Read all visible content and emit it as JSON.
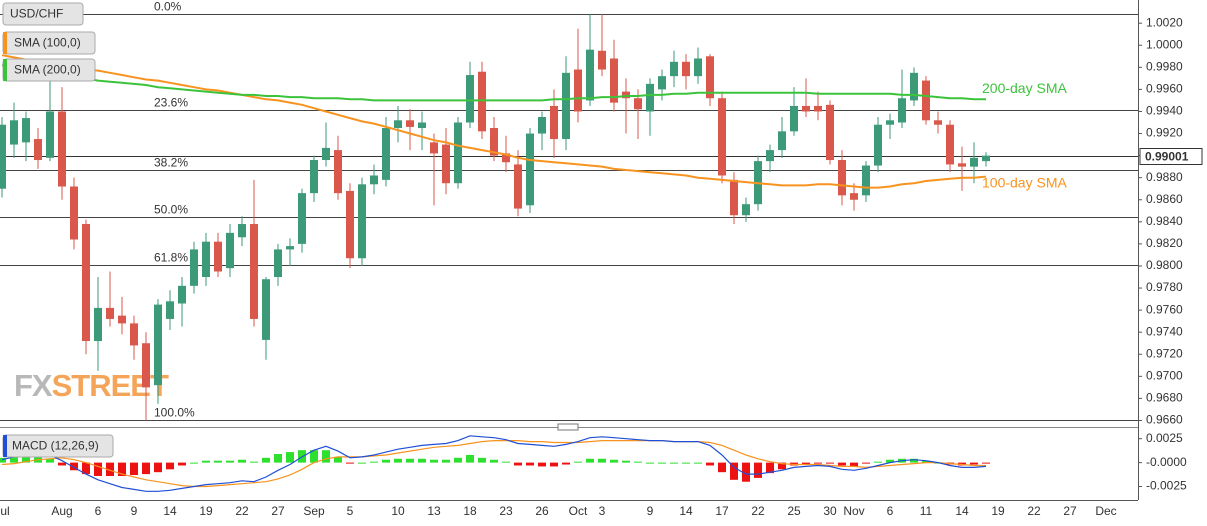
{
  "chart_data": [
    {
      "type": "candlestick",
      "title": "USD/CHF",
      "categories": [
        "Jul",
        null,
        null,
        null,
        null,
        "Aug",
        null,
        null,
        "6",
        null,
        null,
        "9",
        null,
        null,
        "14",
        null,
        null,
        "19",
        null,
        null,
        "22",
        null,
        null,
        "27",
        null,
        null,
        "Sep",
        null,
        null,
        "5",
        null,
        null,
        null,
        "10",
        null,
        null,
        "13",
        null,
        null,
        "18",
        null,
        null,
        "23",
        null,
        null,
        "26",
        null,
        null,
        "Oct",
        null,
        "3",
        null,
        null,
        null,
        "9",
        null,
        null,
        "14",
        null,
        null,
        "17",
        null,
        null,
        "22",
        null,
        null,
        "25",
        null,
        null,
        "30",
        null,
        "Nov",
        null,
        null,
        "6",
        null,
        null,
        "11",
        null,
        null,
        "14",
        null,
        null,
        "19",
        null,
        null,
        "22",
        null,
        null,
        "27",
        null,
        null,
        "Dec",
        null,
        null
      ],
      "open": [
        0.987,
        0.991,
        0.9912,
        0.9915,
        0.9898,
        0.994,
        0.9872,
        0.9838,
        0.9732,
        0.9762,
        0.9755,
        0.9748,
        0.973,
        0.9692,
        0.9752,
        0.9766,
        0.9782,
        0.979,
        0.9822,
        0.9798,
        0.9826,
        0.9838,
        0.9733,
        0.979,
        0.9815,
        0.982,
        0.9866,
        0.9896,
        0.9905,
        0.9868,
        0.9807,
        0.9874,
        0.9878,
        0.9925,
        0.9932,
        0.9925,
        0.9912,
        0.991,
        0.9875,
        0.993,
        0.9976,
        0.9925,
        0.9902,
        0.9892,
        0.9855,
        0.992,
        0.9945,
        0.9915,
        0.9978,
        0.995,
        0.9995,
        0.9988,
        0.9958,
        0.9952,
        0.994,
        0.996,
        0.9972,
        0.9985,
        0.9972,
        0.999,
        0.9952,
        0.9878,
        0.9846,
        0.9856,
        0.9895,
        0.9905,
        0.9922,
        0.9945,
        0.9945,
        0.9946,
        0.9896,
        0.9866,
        0.9864,
        0.9891,
        0.9928,
        0.993,
        0.995,
        0.9968,
        0.9932,
        0.9928,
        0.9893,
        0.989,
        0.9895,
        null,
        null,
        null,
        null,
        null,
        null,
        null,
        null,
        null,
        null,
        null,
        null
      ],
      "high": [
        0.9935,
        0.9948,
        0.994,
        0.9925,
        0.9968,
        0.9962,
        0.988,
        0.9842,
        0.979,
        0.9795,
        0.9772,
        0.9755,
        0.974,
        0.977,
        0.9778,
        0.979,
        0.9822,
        0.983,
        0.983,
        0.9838,
        0.9845,
        0.9878,
        0.979,
        0.982,
        0.9825,
        0.987,
        0.99,
        0.993,
        0.9918,
        0.9875,
        0.988,
        0.9892,
        0.9935,
        0.9945,
        0.9942,
        0.994,
        0.992,
        0.9925,
        0.9935,
        0.9985,
        0.9985,
        0.9935,
        0.9918,
        0.9905,
        0.9925,
        0.994,
        0.996,
        0.999,
        1.0015,
        1.0028,
        1.0028,
        1.0005,
        0.997,
        0.996,
        0.997,
        0.9978,
        0.9995,
        0.9992,
        0.9998,
        0.9992,
        0.9958,
        0.9885,
        0.9862,
        0.99,
        0.991,
        0.9935,
        0.9962,
        0.997,
        0.9958,
        0.995,
        0.9905,
        0.9875,
        0.9895,
        0.9935,
        0.9938,
        0.9978,
        0.998,
        0.9972,
        0.994,
        0.9932,
        0.9908,
        0.9912,
        0.9903,
        null,
        null,
        null,
        null,
        null,
        null,
        null,
        null,
        null,
        null,
        null,
        null
      ],
      "low": [
        0.9862,
        0.9898,
        0.9895,
        0.9888,
        0.9895,
        0.986,
        0.9815,
        0.972,
        0.9705,
        0.9745,
        0.9738,
        0.9715,
        0.966,
        0.9675,
        0.9742,
        0.9745,
        0.9775,
        0.9782,
        0.979,
        0.979,
        0.9818,
        0.9745,
        0.9715,
        0.9782,
        0.98,
        0.9812,
        0.9858,
        0.989,
        0.986,
        0.9798,
        0.98,
        0.9865,
        0.9872,
        0.9912,
        0.9905,
        0.9905,
        0.9855,
        0.9865,
        0.987,
        0.9925,
        0.9915,
        0.9895,
        0.9885,
        0.9845,
        0.9848,
        0.9905,
        0.9898,
        0.9905,
        0.993,
        0.9945,
        0.9972,
        0.994,
        0.992,
        0.9915,
        0.9918,
        0.995,
        0.9962,
        0.996,
        0.9965,
        0.9945,
        0.9875,
        0.9838,
        0.984,
        0.985,
        0.9885,
        0.9898,
        0.9918,
        0.9935,
        0.9932,
        0.9892,
        0.9855,
        0.985,
        0.9858,
        0.9885,
        0.9915,
        0.9925,
        0.9945,
        0.9928,
        0.992,
        0.9885,
        0.9868,
        0.9875,
        0.989,
        null,
        null,
        null,
        null,
        null,
        null,
        null,
        null,
        null,
        null,
        null,
        null
      ],
      "close": [
        0.9928,
        0.9932,
        0.9934,
        0.9896,
        0.994,
        0.9872,
        0.9824,
        0.9732,
        0.9762,
        0.9752,
        0.9748,
        0.9728,
        0.969,
        0.9765,
        0.9768,
        0.9782,
        0.9815,
        0.9822,
        0.9795,
        0.983,
        0.9838,
        0.9752,
        0.9788,
        0.9815,
        0.9818,
        0.9866,
        0.9896,
        0.9907,
        0.9866,
        0.9807,
        0.9874,
        0.9882,
        0.9925,
        0.9932,
        0.9926,
        0.993,
        0.9902,
        0.9875,
        0.993,
        0.9973,
        0.9922,
        0.99,
        0.9894,
        0.9852,
        0.992,
        0.9935,
        0.9915,
        0.9975,
        0.994,
        0.9996,
        0.9978,
        0.9948,
        0.9952,
        0.9942,
        0.9965,
        0.9972,
        0.9985,
        0.9972,
        0.9988,
        0.9952,
        0.9882,
        0.9846,
        0.9856,
        0.9895,
        0.9905,
        0.9922,
        0.9945,
        0.994,
        0.994,
        0.9896,
        0.9864,
        0.986,
        0.9891,
        0.9928,
        0.9932,
        0.9952,
        0.9975,
        0.9932,
        0.9928,
        0.9892,
        0.989,
        0.9898,
        0.99,
        null,
        null,
        null,
        null,
        null,
        null,
        null,
        null,
        null,
        null,
        null,
        null
      ],
      "colors": {
        "up": "#3c9a78",
        "down": "#d9574b"
      },
      "series": [
        {
          "name": "SMA (100,0)",
          "label": "100-day SMA",
          "color": "#f7931e",
          "values": [
            0.9991,
            0.9989,
            0.9987,
            0.9986,
            0.9984,
            0.9982,
            0.998,
            0.9978,
            0.9977,
            0.9975,
            0.9973,
            0.9971,
            0.9969,
            0.9968,
            0.9966,
            0.9964,
            0.9962,
            0.996,
            0.9959,
            0.9957,
            0.9955,
            0.9953,
            0.9951,
            0.995,
            0.9948,
            0.9946,
            0.9943,
            0.994,
            0.9937,
            0.9934,
            0.9931,
            0.9929,
            0.9926,
            0.9923,
            0.992,
            0.9917,
            0.9914,
            0.9912,
            0.9909,
            0.9907,
            0.9905,
            0.9903,
            0.9901,
            0.9898,
            0.9896,
            0.9895,
            0.9894,
            0.9893,
            0.9892,
            0.9891,
            0.989,
            0.9888,
            0.9887,
            0.9886,
            0.9885,
            0.9884,
            0.9883,
            0.9882,
            0.988,
            0.9879,
            0.9878,
            0.9877,
            0.9876,
            0.9875,
            0.9874,
            0.9873,
            0.9873,
            0.9873,
            0.9874,
            0.9874,
            0.9873,
            0.9872,
            0.9871,
            0.9871,
            0.9872,
            0.9874,
            0.9875,
            0.9877,
            0.9878,
            0.9879,
            0.988,
            0.988,
            0.9881,
            null,
            null,
            null,
            null,
            null,
            null,
            null,
            null,
            null,
            null,
            null,
            null
          ]
        },
        {
          "name": "SMA (200,0)",
          "label": "200-day SMA",
          "color": "#3cc33c",
          "values": [
            0.9982,
            0.998,
            0.9979,
            0.9977,
            0.9975,
            0.9973,
            0.9972,
            0.997,
            0.9968,
            0.9967,
            0.9966,
            0.9965,
            0.9964,
            0.9962,
            0.9961,
            0.996,
            0.9959,
            0.9958,
            0.9957,
            0.9956,
            0.9955,
            0.9955,
            0.9954,
            0.9954,
            0.9953,
            0.9953,
            0.9952,
            0.9952,
            0.9952,
            0.9951,
            0.9951,
            0.995,
            0.995,
            0.995,
            0.995,
            0.995,
            0.995,
            0.995,
            0.995,
            0.995,
            0.995,
            0.995,
            0.995,
            0.995,
            0.995,
            0.995,
            0.9951,
            0.9951,
            0.9952,
            0.9952,
            0.9953,
            0.9953,
            0.9954,
            0.9954,
            0.9955,
            0.9955,
            0.9956,
            0.9956,
            0.9957,
            0.9957,
            0.9957,
            0.9957,
            0.9957,
            0.9957,
            0.9957,
            0.9957,
            0.9957,
            0.9957,
            0.9956,
            0.9956,
            0.9956,
            0.9956,
            0.9956,
            0.9956,
            0.9956,
            0.9955,
            0.9955,
            0.9954,
            0.9953,
            0.9952,
            0.9952,
            0.9951,
            0.9951,
            null,
            null,
            null,
            null,
            null,
            null,
            null,
            null,
            null,
            null,
            null,
            null
          ]
        }
      ],
      "fibonacci": {
        "labels": [
          "0.0%",
          "23.6%",
          "38.2%",
          "50.0%",
          "61.8%",
          "100.0%"
        ],
        "values": [
          1.0028,
          0.99412,
          0.98874,
          0.9844,
          0.98006,
          0.966
        ]
      },
      "last_price": 0.99001,
      "watermark": [
        "FX",
        "STREET"
      ],
      "ylim": [
        0.9655,
        1.0041
      ],
      "yticks": [
        {
          "value": 0.966,
          "label": "0.9660"
        },
        {
          "value": 0.968,
          "label": "0.9680"
        },
        {
          "value": 0.97,
          "label": "0.9700"
        },
        {
          "value": 0.972,
          "label": "0.9720"
        },
        {
          "value": 0.974,
          "label": "0.9740"
        },
        {
          "value": 0.976,
          "label": "0.9760"
        },
        {
          "value": 0.978,
          "label": "0.9780"
        },
        {
          "value": 0.98,
          "label": "0.9800"
        },
        {
          "value": 0.982,
          "label": "0.9820"
        },
        {
          "value": 0.984,
          "label": "0.9840"
        },
        {
          "value": 0.986,
          "label": "0.9860"
        },
        {
          "value": 0.988,
          "label": "0.9880"
        },
        {
          "value": 0.99,
          "label": "0.9900"
        },
        {
          "value": 0.992,
          "label": "0.9920"
        },
        {
          "value": 0.994,
          "label": "0.9940"
        },
        {
          "value": 0.996,
          "label": "0.9960"
        },
        {
          "value": 0.998,
          "label": "0.9980"
        },
        {
          "value": 1.0,
          "label": "1.0000"
        },
        {
          "value": 1.002,
          "label": "1.0020"
        }
      ]
    },
    {
      "type": "macd",
      "title": "MACD (12,26,9)",
      "ylim": [
        -0.0037,
        0.0032
      ],
      "yticks": [
        0.0025,
        {
          "value": 0,
          "label": "-0.0000"
        },
        -0.0025
      ],
      "macd": {
        "color": "#1f4fd6",
        "values": [
          0.0003,
          0.0006,
          0.0009,
          0.001,
          0.0008,
          0.0002,
          -0.0005,
          -0.0012,
          -0.0018,
          -0.0022,
          -0.0026,
          -0.0028,
          -0.003,
          -0.003,
          -0.0029,
          -0.0027,
          -0.0025,
          -0.0023,
          -0.0022,
          -0.0021,
          -0.0019,
          -0.002,
          -0.0015,
          -0.0008,
          -0.0002,
          0.0006,
          0.0013,
          0.0017,
          0.0012,
          0.0005,
          0.0006,
          0.0008,
          0.0011,
          0.0014,
          0.0016,
          0.0018,
          0.0019,
          0.002,
          0.0023,
          0.0028,
          0.0027,
          0.0026,
          0.0024,
          0.002,
          0.0019,
          0.0018,
          0.0017,
          0.0019,
          0.0022,
          0.0026,
          0.0027,
          0.0026,
          0.0025,
          0.0024,
          0.0023,
          0.0023,
          0.0022,
          0.0022,
          0.0022,
          0.0018,
          0.0008,
          -0.0005,
          -0.0012,
          -0.0012,
          -0.001,
          -0.0008,
          -0.0005,
          -0.0004,
          -0.0003,
          -0.0004,
          -0.0007,
          -0.0008,
          -0.0006,
          -0.0003,
          0.0,
          0.0002,
          0.0003,
          0.0002,
          0.0,
          -0.0003,
          -0.0005,
          -0.0005,
          -0.0004,
          null,
          null,
          null,
          null,
          null,
          null,
          null,
          null,
          null,
          null,
          null,
          null
        ]
      },
      "signal": {
        "color": "#f7931e",
        "values": [
          -0.0002,
          -0.0001,
          0.0001,
          0.0003,
          0.0004,
          0.0005,
          0.0003,
          0.0,
          -0.0004,
          -0.0008,
          -0.0012,
          -0.0015,
          -0.0018,
          -0.002,
          -0.0022,
          -0.0024,
          -0.0025,
          -0.0025,
          -0.0024,
          -0.0023,
          -0.0022,
          -0.0021,
          -0.002,
          -0.0017,
          -0.0013,
          -0.0007,
          0.0,
          0.0004,
          0.0006,
          0.0006,
          0.0006,
          0.0007,
          0.0008,
          0.001,
          0.0012,
          0.0014,
          0.0016,
          0.0017,
          0.0018,
          0.002,
          0.0022,
          0.0023,
          0.0023,
          0.0023,
          0.0022,
          0.0022,
          0.0021,
          0.0021,
          0.0021,
          0.0022,
          0.0023,
          0.0023,
          0.0023,
          0.0023,
          0.0023,
          0.0023,
          0.0022,
          0.0022,
          0.0022,
          0.0021,
          0.0018,
          0.0013,
          0.0008,
          0.0004,
          0.0001,
          -0.0001,
          -0.0002,
          -0.0002,
          -0.0002,
          -0.0003,
          -0.0004,
          -0.0004,
          -0.0005,
          -0.0004,
          -0.0003,
          -0.0002,
          -0.0001,
          0.0,
          0.0,
          -0.0001,
          -0.0002,
          -0.0003,
          -0.0003,
          null,
          null,
          null,
          null,
          null,
          null,
          null,
          null,
          null,
          null,
          null,
          null
        ]
      },
      "histogram": {
        "colors": {
          "up": "#2ee02e",
          "down": "#ee1111"
        },
        "values": [
          0.0005,
          0.0007,
          0.0008,
          0.0007,
          0.0004,
          -0.0003,
          -0.0008,
          -0.0012,
          -0.0014,
          -0.0014,
          -0.0014,
          -0.0013,
          -0.0012,
          -0.001,
          -0.0007,
          -0.0003,
          0.0,
          0.0002,
          0.0002,
          0.0002,
          0.0003,
          0.0001,
          0.0005,
          0.0009,
          0.0011,
          0.0013,
          0.0013,
          0.0013,
          0.0006,
          -0.0001,
          0.0,
          0.0001,
          0.0003,
          0.0004,
          0.0004,
          0.0004,
          0.0003,
          0.0003,
          0.0005,
          0.0008,
          0.0005,
          0.0003,
          0.0001,
          -0.0003,
          -0.0003,
          -0.0004,
          -0.0004,
          -0.0002,
          0.0001,
          0.0004,
          0.0004,
          0.0003,
          0.0002,
          0.0001,
          0.0,
          0.0,
          0.0,
          0.0,
          0.0,
          -0.0003,
          -0.001,
          -0.0018,
          -0.002,
          -0.0016,
          -0.0011,
          -0.0007,
          -0.0003,
          -0.0002,
          -0.0001,
          -0.0001,
          -0.0003,
          -0.0004,
          -0.0001,
          0.0001,
          0.0003,
          0.0004,
          0.0004,
          0.0002,
          0.0,
          -0.0002,
          -0.0003,
          -0.0002,
          -0.0001,
          null,
          null,
          null,
          null,
          null,
          null,
          null,
          null,
          null,
          null,
          null,
          null
        ]
      }
    }
  ]
}
